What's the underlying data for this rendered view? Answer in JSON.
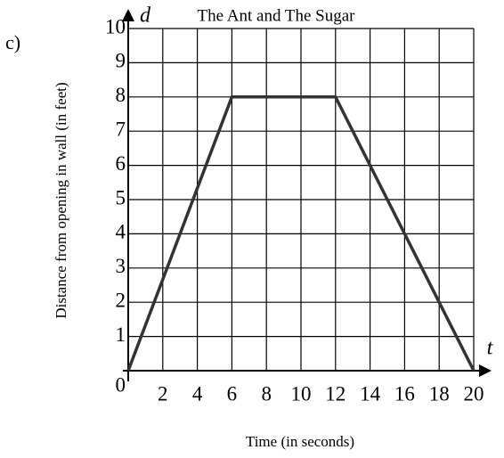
{
  "chart_data": {
    "type": "line",
    "label": "c)",
    "title": "The Ant and The Sugar",
    "xlabel": "Time (in seconds)",
    "ylabel": "Distance from opening in wall (in feet)",
    "x_symbol": "t",
    "y_symbol": "d",
    "x": [
      0,
      6,
      12,
      20
    ],
    "values": [
      0,
      8,
      8,
      0
    ],
    "color": "#333333",
    "xlim": [
      0,
      20
    ],
    "ylim": [
      0,
      10
    ],
    "xticks": [
      0,
      2,
      4,
      6,
      8,
      10,
      12,
      14,
      16,
      18,
      20
    ],
    "yticks": [
      0,
      1,
      2,
      3,
      4,
      5,
      6,
      7,
      8,
      9,
      10
    ],
    "grid": true
  }
}
